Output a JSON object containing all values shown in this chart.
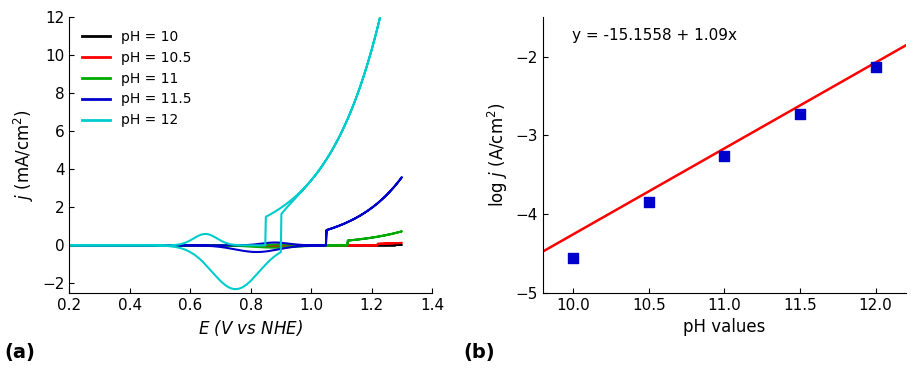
{
  "panel_a": {
    "xlabel": "E (V vs NHE)",
    "ylabel": "j (mA/cm²)",
    "xlim": [
      0.2,
      1.4
    ],
    "ylim": [
      -2.5,
      12
    ],
    "yticks": [
      -2,
      0,
      2,
      4,
      6,
      8,
      10,
      12
    ],
    "xticks": [
      0.2,
      0.4,
      0.6,
      0.8,
      1.0,
      1.2,
      1.4
    ],
    "label": "(a)",
    "legend_entries": [
      {
        "label": "pH = 10",
        "color": "#000000"
      },
      {
        "label": "pH = 10.5",
        "color": "#ff0000"
      },
      {
        "label": "pH = 11",
        "color": "#00aa00"
      },
      {
        "label": "pH = 11.5",
        "color": "#0000cc"
      },
      {
        "label": "pH = 12",
        "color": "#00cccc"
      }
    ]
  },
  "panel_b": {
    "xlabel": "pH values",
    "ylabel": "log j (A/cm²)",
    "xlim": [
      9.8,
      12.2
    ],
    "ylim": [
      -5,
      -1.5
    ],
    "xticks": [
      10,
      10.5,
      11,
      11.5,
      12
    ],
    "yticks": [
      -5,
      -4,
      -3,
      -2
    ],
    "label": "(b)",
    "equation": "y = -15.1558 + 1.09x",
    "fit_x": [
      9.8,
      12.2
    ],
    "fit_slope": 1.09,
    "fit_intercept": -15.1558,
    "scatter_ph": [
      10,
      10.5,
      11,
      11.5,
      12
    ],
    "scatter_logj": [
      -4.56,
      -3.84,
      -3.26,
      -2.73,
      -2.13
    ],
    "scatter_color": "#0000cc",
    "line_color": "#ff0000"
  }
}
